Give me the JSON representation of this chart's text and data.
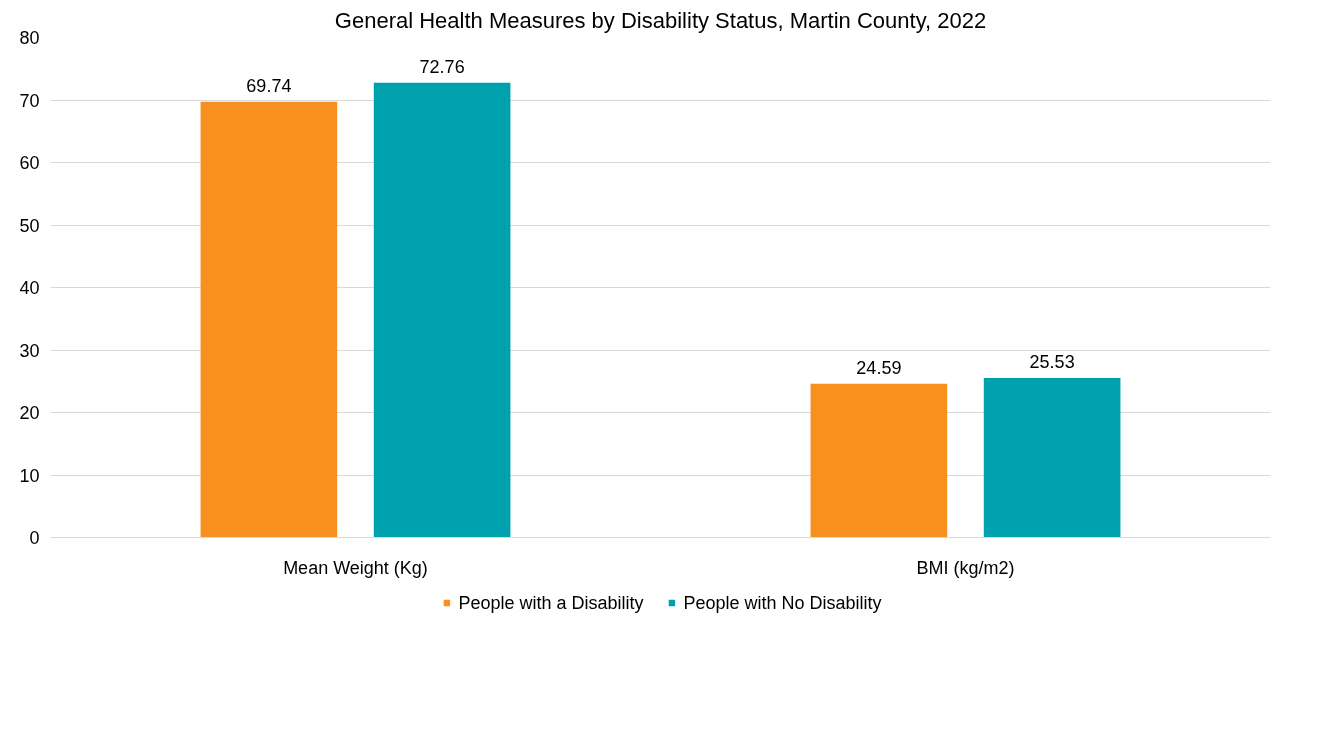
{
  "chart_data": {
    "type": "bar",
    "title": "General Health Measures by Disability Status, Martin County, 2022",
    "categories": [
      "Mean Weight (Kg)",
      "BMI (kg/m2)"
    ],
    "series": [
      {
        "name": "People with a Disability",
        "color": "#f7901e",
        "values": [
          69.74,
          24.59
        ]
      },
      {
        "name": "People with No Disability",
        "color": "#00a1ae",
        "values": [
          72.76,
          25.53
        ]
      }
    ],
    "ylim": [
      0,
      80
    ],
    "yticks": [
      0,
      10,
      20,
      30,
      40,
      50,
      60,
      70,
      80
    ],
    "grid": "y",
    "legend": "bottom",
    "data_labels": true
  }
}
